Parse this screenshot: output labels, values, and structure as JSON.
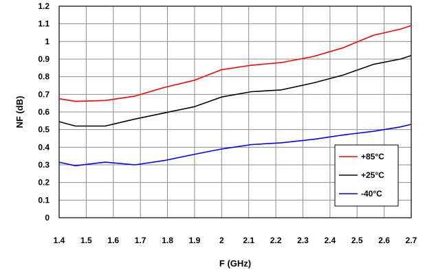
{
  "chart_data": {
    "type": "line",
    "title": "",
    "xlabel": "F (GHz)",
    "ylabel": "NF (dB)",
    "xlim": [
      1.4,
      2.7
    ],
    "ylim": [
      0,
      1.2
    ],
    "xticks": [
      "1.4",
      "1.5",
      "1.6",
      "1.7",
      "1.8",
      "1.9",
      "2",
      "2.1",
      "2.2",
      "2.3",
      "2.4",
      "2.5",
      "2.6",
      "2.7"
    ],
    "yticks": [
      "0",
      "0.1",
      "0.2",
      "0.3",
      "0.4",
      "0.5",
      "0.6",
      "0.7",
      "0.8",
      "0.9",
      "1",
      "1.1",
      "1.2"
    ],
    "grid": true,
    "legend_position": "bottom-right",
    "series": [
      {
        "name": "+85°C",
        "color": "#ff0000",
        "x": [
          1.4,
          1.46,
          1.57,
          1.68,
          1.79,
          1.9,
          2.0,
          2.11,
          2.22,
          2.34,
          2.45,
          2.56,
          2.66,
          2.7
        ],
        "y": [
          0.675,
          0.66,
          0.665,
          0.69,
          0.74,
          0.78,
          0.84,
          0.865,
          0.88,
          0.915,
          0.965,
          1.035,
          1.07,
          1.09
        ]
      },
      {
        "name": "+25°C",
        "color": "#000000",
        "x": [
          1.4,
          1.46,
          1.57,
          1.68,
          1.79,
          1.9,
          2.0,
          2.11,
          2.22,
          2.34,
          2.45,
          2.56,
          2.66,
          2.7
        ],
        "y": [
          0.545,
          0.52,
          0.52,
          0.56,
          0.595,
          0.63,
          0.685,
          0.715,
          0.725,
          0.765,
          0.81,
          0.87,
          0.9,
          0.92
        ]
      },
      {
        "name": "-40°C",
        "color": "#0000ff",
        "x": [
          1.4,
          1.46,
          1.57,
          1.68,
          1.79,
          1.9,
          2.0,
          2.11,
          2.22,
          2.34,
          2.45,
          2.56,
          2.66,
          2.7
        ],
        "y": [
          0.315,
          0.295,
          0.315,
          0.3,
          0.325,
          0.36,
          0.39,
          0.415,
          0.425,
          0.445,
          0.47,
          0.49,
          0.515,
          0.53
        ]
      }
    ]
  }
}
